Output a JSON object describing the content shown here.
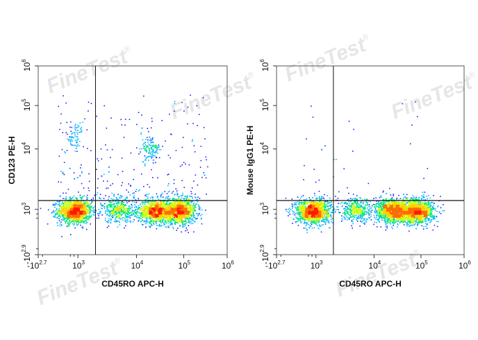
{
  "watermark": {
    "text": "FineTest",
    "mark": "®"
  },
  "colors": {
    "frame": "#555555",
    "gate": "#111111",
    "density_scale": [
      "#1a1aff",
      "#00b4ff",
      "#00e676",
      "#c8ff00",
      "#ffd000",
      "#ff6a00",
      "#ff1a00"
    ]
  },
  "chart_data": [
    {
      "type": "scatter",
      "title": "",
      "xlabel": "CD45RO APC-H",
      "ylabel": "CD123 PE-H",
      "x_ticks": [
        {
          "base": "-10",
          "exp": "2.7"
        },
        {
          "base": "10",
          "exp": "3"
        },
        {
          "base": "10",
          "exp": "4"
        },
        {
          "base": "10",
          "exp": "5"
        },
        {
          "base": "10",
          "exp": "6"
        }
      ],
      "y_ticks": [
        {
          "base": "-10",
          "exp": "2.9"
        },
        {
          "base": "10",
          "exp": "3"
        },
        {
          "base": "10",
          "exp": "4"
        },
        {
          "base": "10",
          "exp": "5"
        },
        {
          "base": "10",
          "exp": "6"
        }
      ],
      "scale": "biexponential",
      "gate": {
        "x": 2000,
        "y": 1400
      },
      "populations": [
        {
          "x": 350,
          "y": 700,
          "weight": 0.3
        },
        {
          "x": 25000,
          "y": 700,
          "weight": 0.24
        },
        {
          "x": 80000,
          "y": 700,
          "weight": 0.26
        },
        {
          "x": 5000,
          "y": 800,
          "weight": 0.1
        },
        {
          "x": 20000,
          "y": 10000,
          "weight": 0.03
        },
        {
          "x": 300,
          "y": 20000,
          "weight": 0.015
        }
      ]
    },
    {
      "type": "scatter",
      "title": "",
      "xlabel": "CD45RO APC-H",
      "ylabel": "Mouse IgG1 PE-H",
      "x_ticks": [
        {
          "base": "-10",
          "exp": "2.7"
        },
        {
          "base": "10",
          "exp": "3"
        },
        {
          "base": "10",
          "exp": "4"
        },
        {
          "base": "10",
          "exp": "5"
        },
        {
          "base": "10",
          "exp": "6"
        }
      ],
      "y_ticks": [
        {
          "base": "-10",
          "exp": "2.9"
        },
        {
          "base": "10",
          "exp": "3"
        },
        {
          "base": "10",
          "exp": "4"
        },
        {
          "base": "10",
          "exp": "5"
        },
        {
          "base": "10",
          "exp": "6"
        }
      ],
      "scale": "biexponential",
      "gate": {
        "x": 2000,
        "y": 1400
      },
      "populations": [
        {
          "x": 350,
          "y": 700,
          "weight": 0.32
        },
        {
          "x": 25000,
          "y": 700,
          "weight": 0.28
        },
        {
          "x": 80000,
          "y": 700,
          "weight": 0.3
        },
        {
          "x": 5000,
          "y": 750,
          "weight": 0.1
        }
      ]
    }
  ]
}
